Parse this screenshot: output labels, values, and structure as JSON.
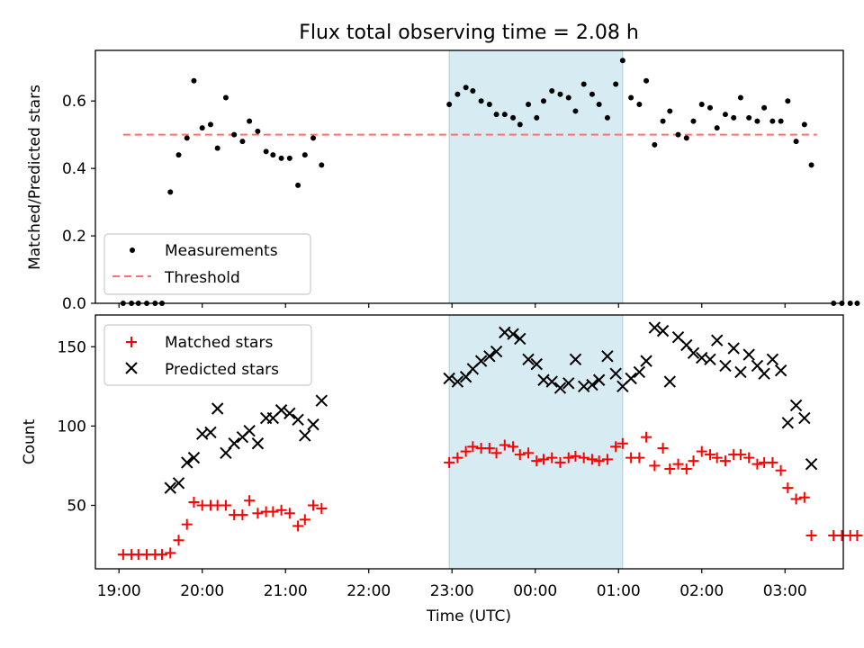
{
  "chart_data": [
    {
      "type": "scatter",
      "title": "Flux total observing time = 2.08 h",
      "xlabel": "",
      "ylabel": "Matched/Predicted stars",
      "xlim": [
        "18:43",
        "03:42"
      ],
      "ylim": [
        0,
        0.75
      ],
      "yticks": [
        0.0,
        0.2,
        0.4,
        0.6
      ],
      "grid": false,
      "legend_position": "lower-left",
      "shaded_interval": {
        "start": "22:58",
        "end": "01:03",
        "color": "#add8e6"
      },
      "threshold": {
        "name": "Threshold",
        "value": 0.5,
        "start": "19:03",
        "end": "03:23",
        "color": "#ff7070"
      },
      "series": [
        {
          "name": "Measurements",
          "points": [
            [
              "19:03",
              0
            ],
            [
              "19:09",
              0
            ],
            [
              "19:14",
              0
            ],
            [
              "19:20",
              0
            ],
            [
              "19:26",
              0
            ],
            [
              "19:31",
              0
            ],
            [
              "19:37",
              0.33
            ],
            [
              "19:43",
              0.44
            ],
            [
              "19:49",
              0.49
            ],
            [
              "19:54",
              0.66
            ],
            [
              "20:00",
              0.52
            ],
            [
              "20:06",
              0.53
            ],
            [
              "20:11",
              0.46
            ],
            [
              "20:17",
              0.61
            ],
            [
              "20:23",
              0.5
            ],
            [
              "20:29",
              0.48
            ],
            [
              "20:34",
              0.54
            ],
            [
              "20:40",
              0.51
            ],
            [
              "20:46",
              0.45
            ],
            [
              "20:51",
              0.44
            ],
            [
              "20:57",
              0.43
            ],
            [
              "21:03",
              0.43
            ],
            [
              "21:09",
              0.35
            ],
            [
              "21:14",
              0.44
            ],
            [
              "21:20",
              0.49
            ],
            [
              "21:26",
              0.41
            ],
            [
              "22:58",
              0.59
            ],
            [
              "23:04",
              0.62
            ],
            [
              "23:10",
              0.64
            ],
            [
              "23:15",
              0.63
            ],
            [
              "23:21",
              0.6
            ],
            [
              "23:27",
              0.59
            ],
            [
              "23:32",
              0.56
            ],
            [
              "23:38",
              0.56
            ],
            [
              "23:44",
              0.55
            ],
            [
              "23:49",
              0.53
            ],
            [
              "23:55",
              0.59
            ],
            [
              "00:01",
              0.55
            ],
            [
              "00:06",
              0.6
            ],
            [
              "00:12",
              0.63
            ],
            [
              "00:18",
              0.62
            ],
            [
              "00:24",
              0.61
            ],
            [
              "00:29",
              0.57
            ],
            [
              "00:35",
              0.65
            ],
            [
              "00:41",
              0.62
            ],
            [
              "00:46",
              0.59
            ],
            [
              "00:52",
              0.55
            ],
            [
              "00:58",
              0.65
            ],
            [
              "01:03",
              0.72
            ],
            [
              "01:09",
              0.61
            ],
            [
              "01:15",
              0.59
            ],
            [
              "01:20",
              0.66
            ],
            [
              "01:26",
              0.47
            ],
            [
              "01:32",
              0.54
            ],
            [
              "01:37",
              0.57
            ],
            [
              "01:43",
              0.5
            ],
            [
              "01:49",
              0.49
            ],
            [
              "01:54",
              0.54
            ],
            [
              "02:00",
              0.59
            ],
            [
              "02:06",
              0.58
            ],
            [
              "02:11",
              0.52
            ],
            [
              "02:17",
              0.56
            ],
            [
              "02:23",
              0.55
            ],
            [
              "02:28",
              0.61
            ],
            [
              "02:34",
              0.55
            ],
            [
              "02:40",
              0.54
            ],
            [
              "02:45",
              0.58
            ],
            [
              "02:51",
              0.54
            ],
            [
              "02:57",
              0.54
            ],
            [
              "03:02",
              0.6
            ],
            [
              "03:08",
              0.48
            ],
            [
              "03:14",
              0.53
            ],
            [
              "03:19",
              0.41
            ],
            [
              "03:35",
              0
            ],
            [
              "03:41",
              0
            ],
            [
              "03:47",
              0
            ],
            [
              "03:52",
              0
            ]
          ]
        }
      ]
    },
    {
      "type": "scatter",
      "title": "",
      "xlabel": "Time (UTC)",
      "ylabel": "Count",
      "xlim": [
        "18:43",
        "03:42"
      ],
      "ylim": [
        10,
        170
      ],
      "xticks": [
        "19:00",
        "20:00",
        "21:00",
        "22:00",
        "23:00",
        "00:00",
        "01:00",
        "02:00",
        "03:00"
      ],
      "yticks": [
        50,
        100,
        150
      ],
      "grid": false,
      "legend_position": "upper-left",
      "shaded_interval": {
        "start": "22:58",
        "end": "01:03",
        "color": "#add8e6"
      },
      "series": [
        {
          "name": "Matched stars",
          "marker": "plus",
          "color": "#ff0000",
          "points": [
            [
              "19:03",
              19
            ],
            [
              "19:09",
              19
            ],
            [
              "19:14",
              19
            ],
            [
              "19:20",
              19
            ],
            [
              "19:26",
              19
            ],
            [
              "19:31",
              19
            ],
            [
              "19:37",
              20
            ],
            [
              "19:43",
              28
            ],
            [
              "19:49",
              38
            ],
            [
              "19:54",
              52
            ],
            [
              "20:00",
              50
            ],
            [
              "20:06",
              50
            ],
            [
              "20:11",
              50
            ],
            [
              "20:17",
              50
            ],
            [
              "20:23",
              44
            ],
            [
              "20:29",
              44
            ],
            [
              "20:34",
              53
            ],
            [
              "20:40",
              45
            ],
            [
              "20:46",
              46
            ],
            [
              "20:51",
              46
            ],
            [
              "20:57",
              47
            ],
            [
              "21:03",
              45
            ],
            [
              "21:09",
              37
            ],
            [
              "21:14",
              41
            ],
            [
              "21:20",
              50
            ],
            [
              "21:26",
              48
            ],
            [
              "22:58",
              77
            ],
            [
              "23:04",
              80
            ],
            [
              "23:10",
              84
            ],
            [
              "23:15",
              87
            ],
            [
              "23:21",
              86
            ],
            [
              "23:27",
              86
            ],
            [
              "23:32",
              83
            ],
            [
              "23:38",
              88
            ],
            [
              "23:44",
              87
            ],
            [
              "23:49",
              82
            ],
            [
              "23:55",
              83
            ],
            [
              "00:01",
              78
            ],
            [
              "00:06",
              79
            ],
            [
              "00:12",
              80
            ],
            [
              "00:18",
              77
            ],
            [
              "00:24",
              80
            ],
            [
              "00:29",
              81
            ],
            [
              "00:35",
              80
            ],
            [
              "00:41",
              79
            ],
            [
              "00:46",
              78
            ],
            [
              "00:52",
              79
            ],
            [
              "00:58",
              87
            ],
            [
              "01:03",
              89
            ],
            [
              "01:09",
              80
            ],
            [
              "01:15",
              80
            ],
            [
              "01:20",
              93
            ],
            [
              "01:26",
              75
            ],
            [
              "01:32",
              86
            ],
            [
              "01:37",
              73
            ],
            [
              "01:43",
              76
            ],
            [
              "01:49",
              73
            ],
            [
              "01:54",
              78
            ],
            [
              "02:00",
              84
            ],
            [
              "02:06",
              82
            ],
            [
              "02:11",
              80
            ],
            [
              "02:17",
              78
            ],
            [
              "02:23",
              82
            ],
            [
              "02:28",
              82
            ],
            [
              "02:34",
              80
            ],
            [
              "02:40",
              76
            ],
            [
              "02:45",
              77
            ],
            [
              "02:51",
              77
            ],
            [
              "02:57",
              72
            ],
            [
              "03:02",
              61
            ],
            [
              "03:08",
              54
            ],
            [
              "03:14",
              55
            ],
            [
              "03:19",
              31
            ],
            [
              "03:35",
              31
            ],
            [
              "03:41",
              31
            ],
            [
              "03:47",
              31
            ],
            [
              "03:52",
              31
            ]
          ]
        },
        {
          "name": "Predicted stars",
          "marker": "x",
          "color": "#000000",
          "points": [
            [
              "19:37",
              61
            ],
            [
              "19:43",
              64
            ],
            [
              "19:49",
              77
            ],
            [
              "19:54",
              80
            ],
            [
              "20:00",
              95
            ],
            [
              "20:06",
              96
            ],
            [
              "20:11",
              111
            ],
            [
              "20:17",
              83
            ],
            [
              "20:23",
              89
            ],
            [
              "20:29",
              93
            ],
            [
              "20:34",
              97
            ],
            [
              "20:40",
              89
            ],
            [
              "20:46",
              105
            ],
            [
              "20:51",
              105
            ],
            [
              "20:57",
              110
            ],
            [
              "21:03",
              108
            ],
            [
              "21:09",
              104
            ],
            [
              "21:14",
              94
            ],
            [
              "21:20",
              101
            ],
            [
              "21:26",
              116
            ],
            [
              "22:58",
              130
            ],
            [
              "23:04",
              128
            ],
            [
              "23:10",
              131
            ],
            [
              "23:15",
              136
            ],
            [
              "23:21",
              141
            ],
            [
              "23:27",
              144
            ],
            [
              "23:32",
              147
            ],
            [
              "23:38",
              159
            ],
            [
              "23:44",
              158
            ],
            [
              "23:49",
              155
            ],
            [
              "23:55",
              142
            ],
            [
              "00:01",
              139
            ],
            [
              "00:06",
              129
            ],
            [
              "00:12",
              128
            ],
            [
              "00:18",
              124
            ],
            [
              "00:24",
              127
            ],
            [
              "00:29",
              142
            ],
            [
              "00:35",
              125
            ],
            [
              "00:41",
              126
            ],
            [
              "00:46",
              129
            ],
            [
              "00:52",
              144
            ],
            [
              "00:58",
              133
            ],
            [
              "01:03",
              125
            ],
            [
              "01:09",
              130
            ],
            [
              "01:15",
              134
            ],
            [
              "01:20",
              141
            ],
            [
              "01:26",
              162
            ],
            [
              "01:32",
              160
            ],
            [
              "01:37",
              128
            ],
            [
              "01:43",
              156
            ],
            [
              "01:49",
              151
            ],
            [
              "01:54",
              146
            ],
            [
              "02:00",
              143
            ],
            [
              "02:06",
              142
            ],
            [
              "02:11",
              154
            ],
            [
              "02:17",
              138
            ],
            [
              "02:23",
              149
            ],
            [
              "02:28",
              134
            ],
            [
              "02:34",
              145
            ],
            [
              "02:40",
              138
            ],
            [
              "02:45",
              133
            ],
            [
              "02:51",
              142
            ],
            [
              "02:57",
              135
            ],
            [
              "03:02",
              102
            ],
            [
              "03:08",
              113
            ],
            [
              "03:14",
              105
            ],
            [
              "03:19",
              76
            ]
          ]
        }
      ]
    }
  ]
}
